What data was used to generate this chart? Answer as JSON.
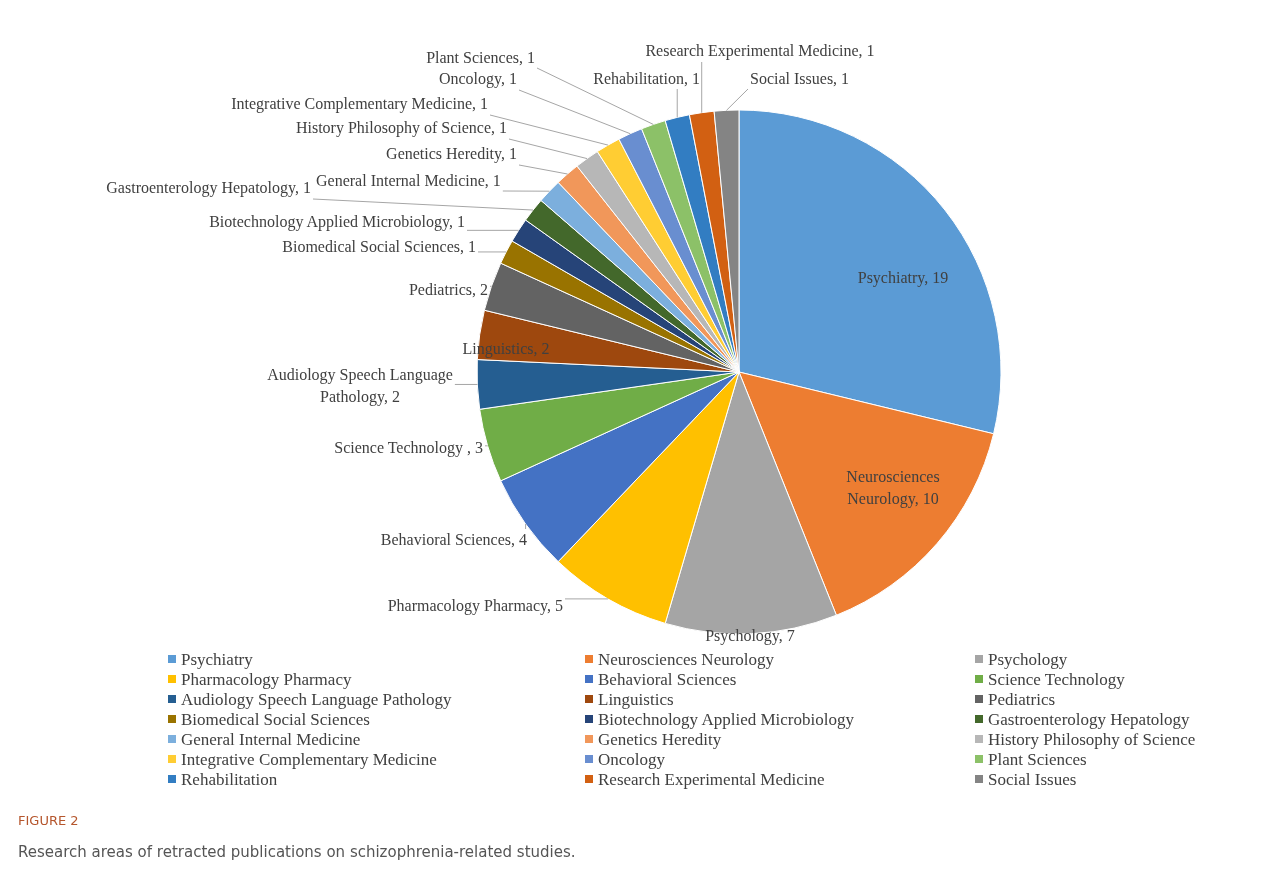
{
  "chart_data": {
    "type": "pie",
    "title": "FIGURE 2",
    "subtitle": "Research areas of retracted publications on schizophrenia-related studies.",
    "categories": [
      "Psychiatry",
      "Neurosciences Neurology",
      "Psychology",
      "Pharmacology Pharmacy",
      "Behavioral Sciences",
      "Science Technology",
      "Audiology Speech Language Pathology",
      "Linguistics",
      "Pediatrics",
      "Biomedical Social Sciences",
      "Biotechnology Applied Microbiology",
      "Gastroenterology Hepatology",
      "General Internal Medicine",
      "Genetics Heredity",
      "History Philosophy of Science",
      "Integrative Complementary Medicine",
      "Oncology",
      "Plant Sciences",
      "Rehabilitation",
      "Research Experimental Medicine",
      "Social Issues"
    ],
    "values": [
      19,
      10,
      7,
      5,
      4,
      3,
      2,
      2,
      2,
      1,
      1,
      1,
      1,
      1,
      1,
      1,
      1,
      1,
      1,
      1,
      1
    ],
    "value_labels": [
      "Psychiatry, 19",
      "Neurosciences Neurology, 10",
      "Psychology, 7",
      "Pharmacology Pharmacy, 5",
      "Behavioral Sciences, 4",
      "Science Technology , 3",
      "Audiology Speech Language Pathology, 2",
      "Linguistics, 2",
      "Pediatrics, 2",
      "Biomedical Social Sciences, 1",
      "Biotechnology Applied Microbiology, 1",
      "Gastroenterology Hepatology, 1",
      "General Internal Medicine, 1",
      "Genetics Heredity, 1",
      "History Philosophy of Science, 1",
      "Integrative Complementary Medicine, 1",
      "Oncology, 1",
      "Plant Sciences, 1",
      "Rehabilitation, 1",
      "Research Experimental Medicine, 1",
      "Social Issues, 1"
    ],
    "colors": [
      "#5b9bd5",
      "#ed7d31",
      "#a5a5a5",
      "#ffc000",
      "#4472c4",
      "#70ad47",
      "#255e91",
      "#9e480e",
      "#636363",
      "#997300",
      "#264478",
      "#43682b",
      "#7cafdd",
      "#f1975a",
      "#b7b7b7",
      "#ffcd33",
      "#698ed0",
      "#8cc168",
      "#327dc2",
      "#d26012",
      "#848484"
    ],
    "legend": "bottom"
  }
}
